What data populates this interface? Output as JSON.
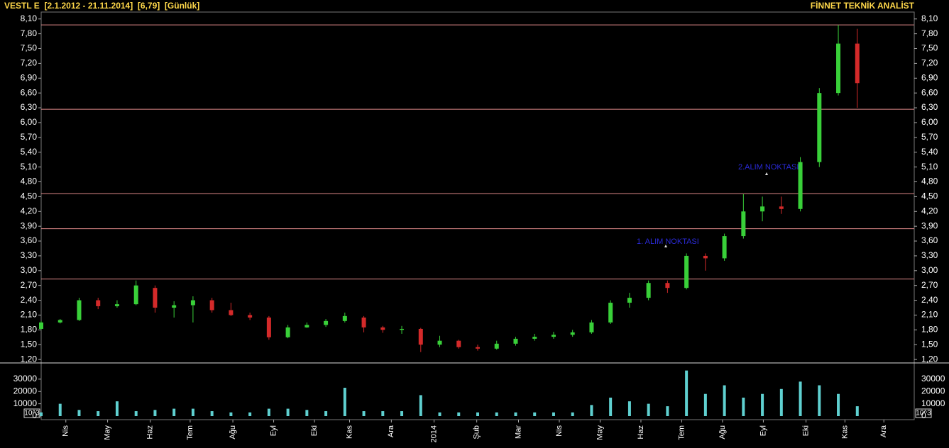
{
  "chart_data": [
    {
      "type": "candlestick",
      "title": "VESTL E  [2.1.2012 - 21.11.2014]  [6,79]  [Günlük]",
      "subtitle": "FİNNET TEKNİK ANALİST",
      "annotations": [
        "1. ALIM NOKTASI",
        "2.ALIM NOKTASI"
      ],
      "up_color": "#39d039",
      "down_color": "#d42a2a",
      "hline_color": "#e08a8a",
      "hlines": [
        7.98,
        6.27,
        4.56,
        3.85,
        2.83
      ],
      "x": [
        0,
        2,
        4,
        6,
        8,
        10,
        12,
        14,
        16,
        18,
        20,
        22,
        24,
        26,
        28,
        30,
        32,
        34,
        36,
        38,
        40,
        42,
        44,
        46,
        48,
        50,
        52,
        54,
        56,
        58,
        60,
        62,
        64,
        66,
        68,
        70,
        72,
        74,
        76,
        78,
        80,
        82,
        84,
        86
      ],
      "open": [
        1.82,
        1.95,
        2.0,
        2.4,
        2.28,
        2.32,
        2.65,
        2.25,
        2.3,
        2.4,
        2.2,
        2.1,
        2.05,
        1.65,
        1.85,
        1.9,
        1.98,
        2.05,
        1.85,
        1.8,
        1.82,
        1.5,
        1.58,
        1.45,
        1.42,
        1.52,
        1.62,
        1.66,
        1.7,
        1.75,
        1.95,
        2.35,
        2.45,
        2.75,
        2.65,
        3.3,
        3.25,
        3.7,
        4.2,
        4.3,
        4.25,
        5.2,
        6.6,
        7.6
      ],
      "high": [
        1.98,
        2.02,
        2.45,
        2.45,
        2.4,
        2.8,
        2.7,
        2.38,
        2.48,
        2.45,
        2.35,
        2.15,
        2.08,
        1.9,
        1.95,
        2.02,
        2.15,
        2.08,
        1.88,
        1.88,
        1.84,
        1.68,
        1.6,
        1.5,
        1.58,
        1.66,
        1.72,
        1.76,
        1.8,
        2.0,
        2.4,
        2.55,
        2.8,
        2.8,
        3.35,
        3.35,
        3.75,
        4.55,
        4.5,
        4.5,
        5.3,
        6.7,
        7.98,
        7.9
      ],
      "low": [
        1.8,
        1.93,
        1.98,
        2.22,
        2.25,
        2.3,
        2.15,
        2.05,
        1.95,
        2.15,
        2.08,
        2.0,
        1.6,
        1.63,
        1.84,
        1.86,
        1.95,
        1.75,
        1.74,
        1.72,
        1.35,
        1.45,
        1.42,
        1.38,
        1.4,
        1.48,
        1.58,
        1.62,
        1.66,
        1.72,
        1.92,
        2.25,
        2.4,
        2.55,
        2.62,
        3.0,
        3.2,
        3.65,
        4.0,
        4.15,
        4.2,
        5.1,
        6.55,
        6.3
      ],
      "close": [
        1.95,
        2.0,
        2.4,
        2.28,
        2.32,
        2.7,
        2.25,
        2.3,
        2.4,
        2.2,
        2.1,
        2.05,
        1.65,
        1.85,
        1.9,
        1.98,
        2.08,
        1.85,
        1.8,
        1.82,
        1.5,
        1.58,
        1.45,
        1.42,
        1.52,
        1.62,
        1.66,
        1.7,
        1.75,
        1.95,
        2.35,
        2.45,
        2.75,
        2.65,
        3.3,
        3.25,
        3.7,
        4.2,
        4.3,
        4.25,
        5.2,
        6.6,
        7.6,
        6.8
      ],
      "xlim": [
        0,
        92
      ],
      "xticks": [
        {
          "value": 2.6,
          "label": "Nis"
        },
        {
          "value": 7.0,
          "label": "May"
        },
        {
          "value": 11.5,
          "label": "Haz"
        },
        {
          "value": 15.7,
          "label": "Tem"
        },
        {
          "value": 20.2,
          "label": "Ağu"
        },
        {
          "value": 24.5,
          "label": "Eyl"
        },
        {
          "value": 28.8,
          "label": "Eki"
        },
        {
          "value": 32.5,
          "label": "Kas"
        },
        {
          "value": 36.9,
          "label": "Ara"
        },
        {
          "value": 41.4,
          "label": "2014"
        },
        {
          "value": 45.9,
          "label": "Şub"
        },
        {
          "value": 50.3,
          "label": "Mar"
        },
        {
          "value": 54.6,
          "label": "Nis"
        },
        {
          "value": 58.9,
          "label": "May"
        },
        {
          "value": 63.2,
          "label": "Haz"
        },
        {
          "value": 67.5,
          "label": "Tem"
        },
        {
          "value": 71.8,
          "label": "Ağu"
        },
        {
          "value": 76.1,
          "label": "Eyl"
        },
        {
          "value": 80.6,
          "label": "Eki"
        },
        {
          "value": 84.7,
          "label": "Kas"
        },
        {
          "value": 88.8,
          "label": "Ara"
        }
      ],
      "ylim": [
        1.13,
        8.24
      ],
      "yticks": [
        {
          "value": 1.2,
          "label": "1,20"
        },
        {
          "value": 1.5,
          "label": "1,50"
        },
        {
          "value": 1.8,
          "label": "1,80"
        },
        {
          "value": 2.1,
          "label": "2,10"
        },
        {
          "value": 2.4,
          "label": "2,40"
        },
        {
          "value": 2.7,
          "label": "2,70"
        },
        {
          "value": 3.0,
          "label": "3,00"
        },
        {
          "value": 3.3,
          "label": "3,30"
        },
        {
          "value": 3.6,
          "label": "3,60"
        },
        {
          "value": 3.9,
          "label": "3,90"
        },
        {
          "value": 4.2,
          "label": "4,20"
        },
        {
          "value": 4.5,
          "label": "4,50"
        },
        {
          "value": 4.8,
          "label": "4,80"
        },
        {
          "value": 5.1,
          "label": "5,10"
        },
        {
          "value": 5.4,
          "label": "5,40"
        },
        {
          "value": 5.7,
          "label": "5,70"
        },
        {
          "value": 6.0,
          "label": "6,00"
        },
        {
          "value": 6.3,
          "label": "6,30"
        },
        {
          "value": 6.6,
          "label": "6,60"
        },
        {
          "value": 6.9,
          "label": "6,90"
        },
        {
          "value": 7.2,
          "label": "7,20"
        },
        {
          "value": 7.5,
          "label": "7,50"
        },
        {
          "value": 7.8,
          "label": "7,80"
        },
        {
          "value": 8.1,
          "label": "8,10"
        }
      ]
    },
    {
      "type": "bar",
      "color": "#5fd0d0",
      "unit_label": "10^3",
      "values": [
        3000,
        10000,
        5000,
        4000,
        12000,
        4000,
        5000,
        6000,
        6000,
        4000,
        3000,
        3000,
        6000,
        6000,
        5000,
        4000,
        23000,
        4000,
        4000,
        4000,
        17000,
        3000,
        3000,
        3000,
        3000,
        3000,
        3000,
        3000,
        3000,
        9000,
        15000,
        12000,
        10000,
        8000,
        37000,
        18000,
        25000,
        15000,
        18000,
        22000,
        28000,
        25000,
        18000,
        8000
      ],
      "ylim": [
        0,
        42000
      ],
      "yticks": [
        0,
        10000,
        20000,
        30000
      ]
    }
  ]
}
